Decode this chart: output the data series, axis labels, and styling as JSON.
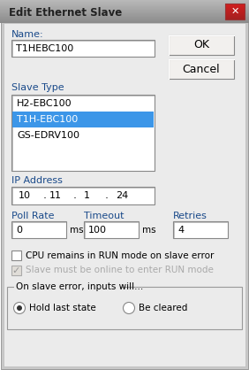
{
  "title": "Edit Ethernet Slave",
  "bg_color": "#c8c8c8",
  "body_color": "#ebebeb",
  "white": "#ffffff",
  "selected_blue": "#3c96e8",
  "text_dark": "#000000",
  "text_label": "#1a4a8a",
  "text_gray": "#aaaaaa",
  "titlebar_light": "#c0bebe",
  "titlebar_dark": "#8a8a8a",
  "close_btn_top": "#e86060",
  "close_btn_bot": "#b02020",
  "name_value": "T1HEBC100",
  "slave_types": [
    "H2-EBC100",
    "T1H-EBC100",
    "GS-EDRV100"
  ],
  "selected_slave": 1,
  "ip_parts": [
    "10",
    "11",
    "1",
    "24"
  ],
  "poll_rate": "0",
  "timeout": "100",
  "retries": "4",
  "checkbox1_label": "CPU remains in RUN mode on slave error",
  "checkbox2_label": "Slave must be online to enter RUN mode",
  "group_label": "On slave error, inputs will...",
  "radio1_label": "Hold last state",
  "radio2_label": "Be cleared"
}
